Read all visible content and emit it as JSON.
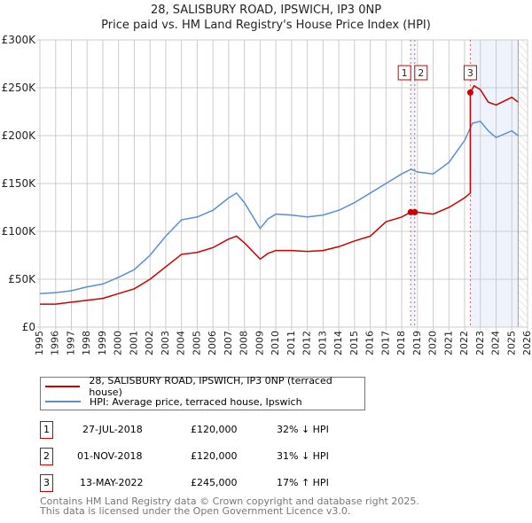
{
  "title": "28, SALISBURY ROAD, IPSWICH, IP3 0NP",
  "subtitle": "Price paid vs. HM Land Registry's House Price Index (HPI)",
  "chart_data": {
    "type": "line",
    "xlim": [
      1995,
      2026
    ],
    "ylim": [
      0,
      300000
    ],
    "x_ticks": [
      "1995",
      "1996",
      "1997",
      "1998",
      "1999",
      "2000",
      "2001",
      "2002",
      "2003",
      "2004",
      "2005",
      "2006",
      "2007",
      "2008",
      "2009",
      "2010",
      "2011",
      "2012",
      "2013",
      "2014",
      "2015",
      "2016",
      "2017",
      "2018",
      "2019",
      "2020",
      "2021",
      "2022",
      "2023",
      "2024",
      "2025",
      "2026"
    ],
    "y_ticks": [
      {
        "v": 0,
        "label": "£0"
      },
      {
        "v": 50000,
        "label": "£50K"
      },
      {
        "v": 100000,
        "label": "£100K"
      },
      {
        "v": 150000,
        "label": "£150K"
      },
      {
        "v": 200000,
        "label": "£200K"
      },
      {
        "v": 250000,
        "label": "£250K"
      },
      {
        "v": 300000,
        "label": "£300K"
      }
    ],
    "shaded_range": [
      2022.36,
      2025.4
    ],
    "hatched_from": 2025.4,
    "series": [
      {
        "name": "28, SALISBURY ROAD, IPSWICH, IP3 0NP (terraced house)",
        "color": "#cc0000",
        "x": [
          1995,
          1996,
          1997,
          1998,
          1999,
          2000,
          2001,
          2002,
          2003,
          2004,
          2005,
          2006,
          2007,
          2007.5,
          2008,
          2009,
          2009.5,
          2010,
          2011,
          2012,
          2013,
          2014,
          2015,
          2016,
          2017,
          2018,
          2018.57,
          2018.83,
          2019,
          2020,
          2021,
          2022,
          2022.36,
          2022.36,
          2022.6,
          2023,
          2023.5,
          2024,
          2025,
          2025.4
        ],
        "y": [
          24000,
          24000,
          26000,
          28000,
          30000,
          35000,
          40000,
          50000,
          63000,
          76000,
          78000,
          83000,
          92000,
          95000,
          88000,
          71000,
          77000,
          80000,
          80000,
          79000,
          80000,
          84000,
          90000,
          95000,
          110000,
          115000,
          120000,
          120000,
          120000,
          118000,
          125000,
          135000,
          140000,
          245000,
          252000,
          248000,
          235000,
          232000,
          240000,
          235000
        ]
      },
      {
        "name": "HPI: Average price, terraced house, Ipswich",
        "color": "#5b8fd0",
        "x": [
          1995,
          1996,
          1997,
          1998,
          1999,
          2000,
          2001,
          2002,
          2003,
          2004,
          2005,
          2006,
          2007,
          2007.5,
          2008,
          2009,
          2009.5,
          2010,
          2011,
          2012,
          2013,
          2014,
          2015,
          2016,
          2017,
          2018,
          2018.6,
          2019,
          2020,
          2021,
          2022,
          2022.5,
          2023,
          2023.5,
          2024,
          2025,
          2025.4
        ],
        "y": [
          35000,
          36000,
          38000,
          42000,
          45000,
          52000,
          60000,
          75000,
          95000,
          112000,
          115000,
          122000,
          135000,
          140000,
          130000,
          103000,
          113000,
          118000,
          117000,
          115000,
          117000,
          122000,
          130000,
          140000,
          150000,
          160000,
          165000,
          162000,
          160000,
          172000,
          195000,
          213000,
          215000,
          205000,
          198000,
          205000,
          200000
        ]
      }
    ],
    "sales": [
      {
        "id": "1",
        "date": "27-JUL-2018",
        "x": 2018.57,
        "price": "£120,000",
        "value": 120000,
        "hpi": "32% ↓ HPI"
      },
      {
        "id": "2",
        "date": "01-NOV-2018",
        "x": 2018.83,
        "price": "£120,000",
        "value": 120000,
        "hpi": "31% ↓ HPI"
      },
      {
        "id": "3",
        "date": "13-MAY-2022",
        "x": 2022.36,
        "price": "£245,000",
        "value": 245000,
        "hpi": "17% ↑ HPI"
      }
    ]
  },
  "footer": [
    "Contains HM Land Registry data © Crown copyright and database right 2025.",
    "This data is licensed under the Open Government Licence v3.0."
  ]
}
